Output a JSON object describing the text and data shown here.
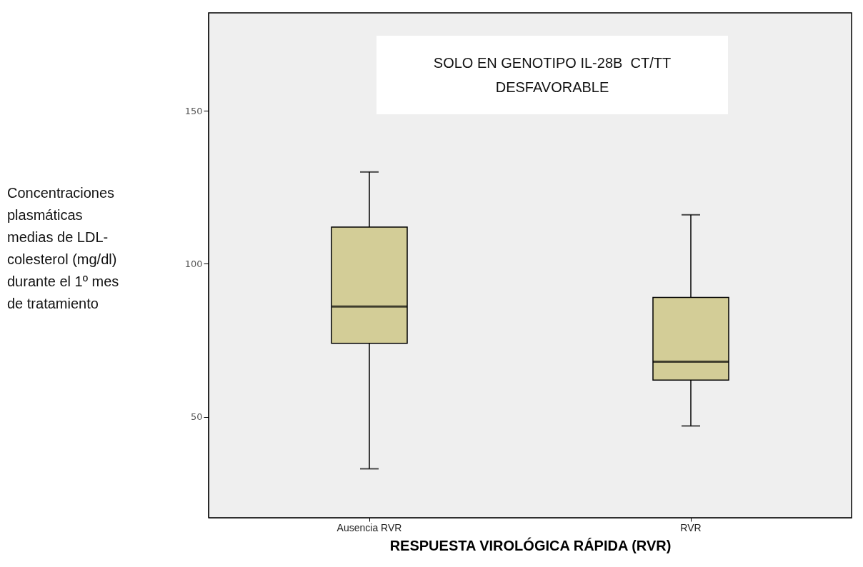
{
  "chart_data": {
    "type": "box",
    "title": "SOLO EN GENOTIPO IL-28B  CT/TT DESFAVORABLE",
    "xlabel": "RESPUESTA VIROLÓGICA RÁPIDA (RVR)",
    "ylabel": "Concentraciones plasmáticas medias de LDL-colesterol (mg/dl) durante el 1º mes de tratamiento",
    "categories": [
      "Ausencia RVR",
      "RVR"
    ],
    "boxes": [
      {
        "low": 33,
        "q1": 74,
        "median": 86,
        "q3": 112,
        "high": 130
      },
      {
        "low": 47,
        "q1": 62,
        "median": 68,
        "q3": 89,
        "high": 116
      }
    ],
    "color": "#d3cd97",
    "ylim": [
      17,
      182
    ],
    "yticks": [
      50,
      100,
      150
    ],
    "grid": false
  }
}
